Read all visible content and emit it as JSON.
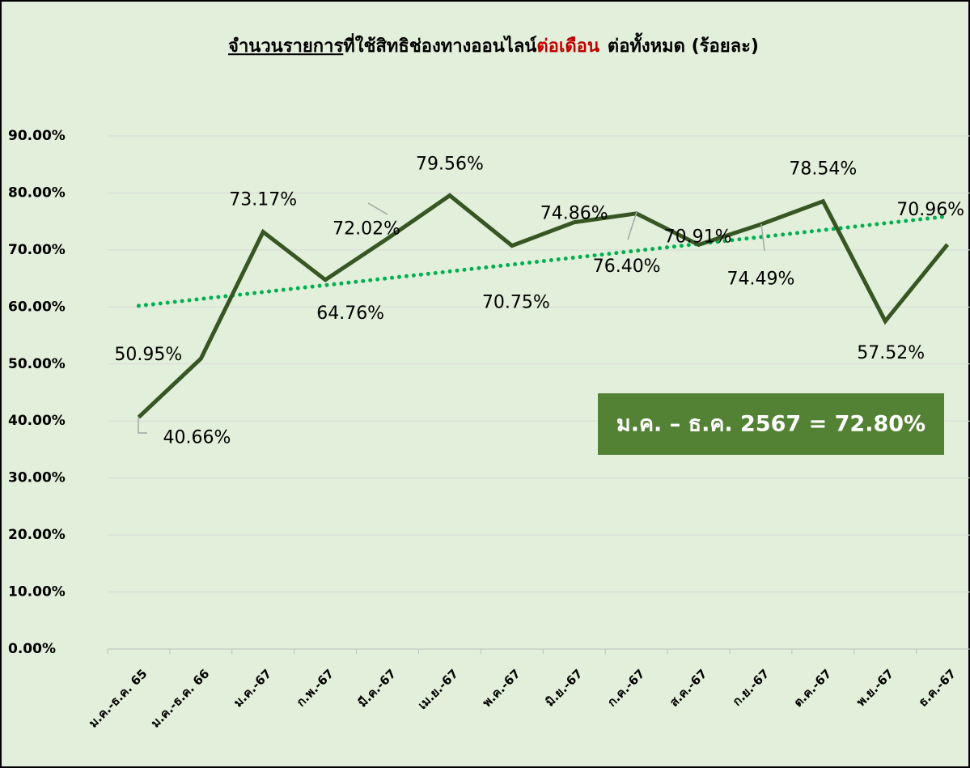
{
  "chart_data": {
    "type": "line",
    "title": [
      "จำนวนรายการ",
      "ที่ใช้สิทธิช่องทางออนไลน์",
      "ต่อเดือน",
      "ต่อทั้งหมด (ร้อยละ)"
    ],
    "categories": [
      "ม.ค.-ธ.ค. 65",
      "ม.ค.-ธ.ค. 66",
      "ม.ค.-67",
      "ก.พ.-67",
      "มี.ค.-67",
      "เม.ย.-67",
      "พ.ค.-67",
      "มิ.ย.-67",
      "ก.ค.-67",
      "ส.ค.-67",
      "ก.ย.-67",
      "ต.ค.-67",
      "พ.ย.-67",
      "ธ.ค.-67"
    ],
    "series": [
      {
        "color": "#375623",
        "values": [
          40.66,
          50.95,
          73.17,
          64.76,
          72.02,
          79.56,
          70.75,
          74.86,
          76.4,
          70.91,
          74.49,
          78.54,
          57.52,
          70.96
        ],
        "value_labels": [
          "40.66%",
          "50.95%",
          "73.17%",
          "64.76%",
          "72.02%",
          "79.56%",
          "70.75%",
          "74.86%",
          "76.40%",
          "70.91%",
          "74.49%",
          "78.54%",
          "57.52%",
          "70.96%"
        ]
      }
    ],
    "trendline": {
      "color": "#00b050",
      "values": [
        60.2,
        75.9
      ]
    },
    "annotation": "ม.ค. – ธ.ค. 2567 = 72.80%",
    "ylim": [
      0,
      90
    ],
    "yticks": [
      {
        "value": 0,
        "label": "0.00%"
      },
      {
        "value": 10,
        "label": "10.00%"
      },
      {
        "value": 20,
        "label": "20.00%"
      },
      {
        "value": 30,
        "label": "30.00%"
      },
      {
        "value": 40,
        "label": "40.00%"
      },
      {
        "value": 50,
        "label": "50.00%"
      },
      {
        "value": 60,
        "label": "60.00%"
      },
      {
        "value": 70,
        "label": "70.00%"
      },
      {
        "value": 80,
        "label": "80.00%"
      },
      {
        "value": 90,
        "label": "90.00%"
      }
    ],
    "grid": true
  }
}
